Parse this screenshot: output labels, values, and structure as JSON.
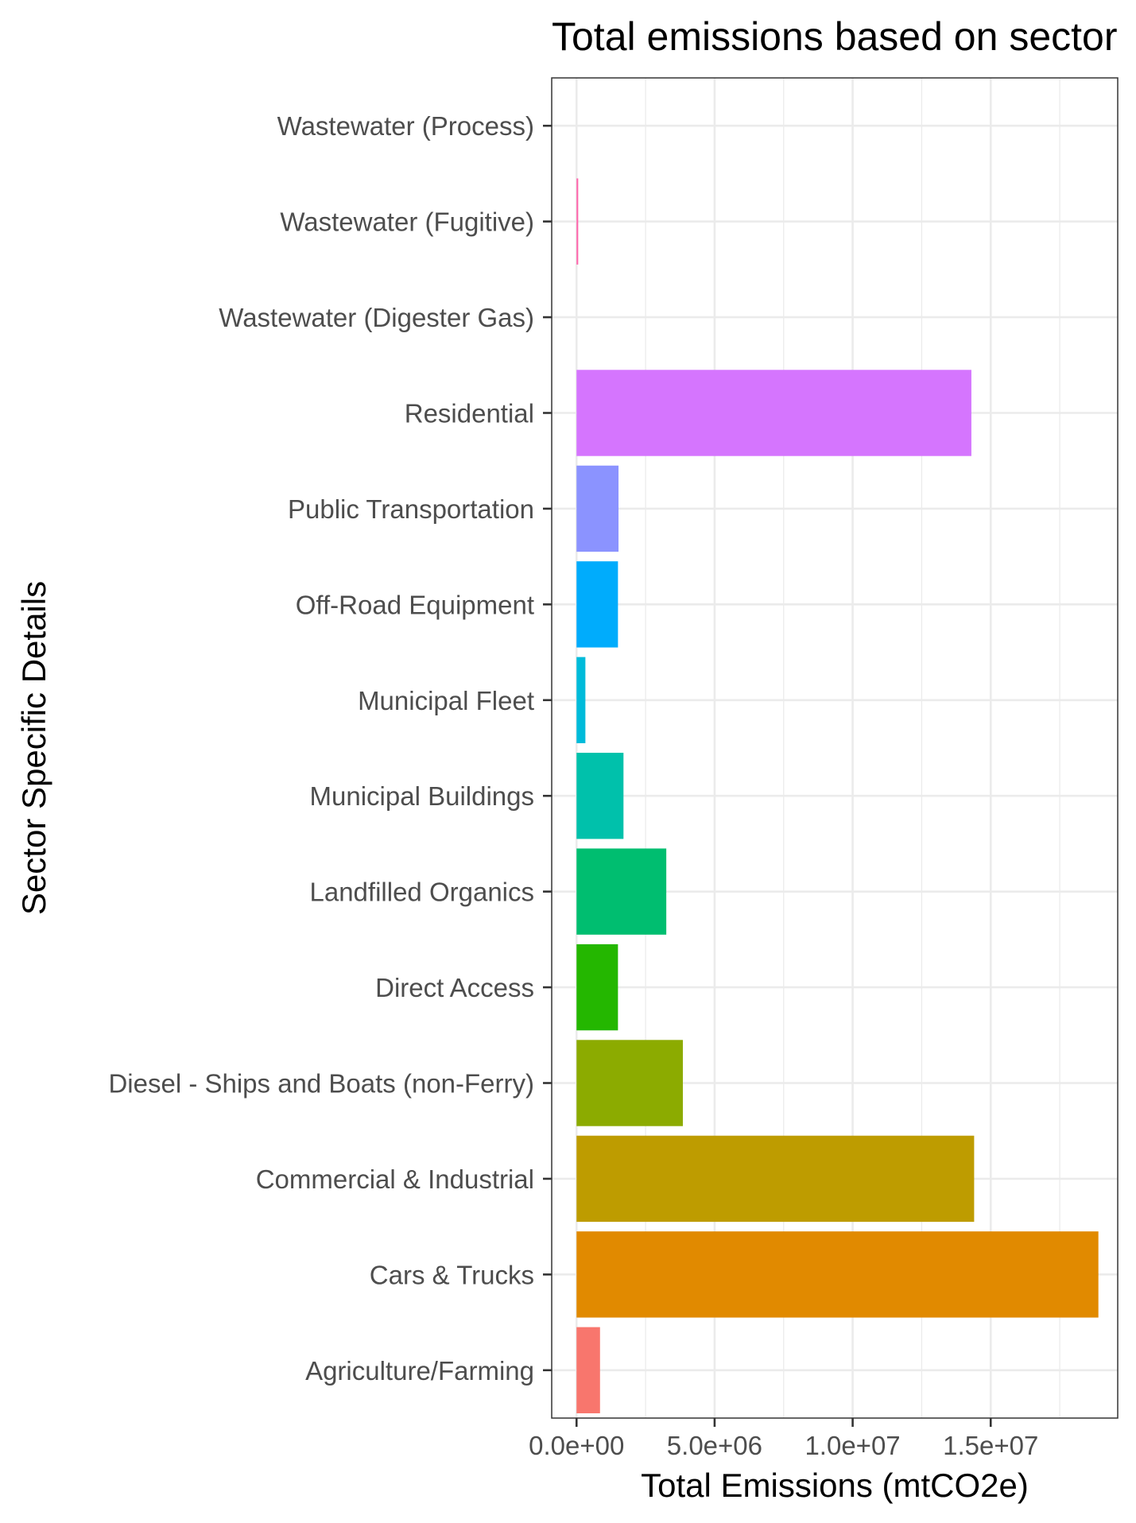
{
  "chart_data": {
    "type": "bar",
    "orientation": "horizontal",
    "title": "Total emissions based on sector",
    "xlabel": "Total Emissions (mtCO2e)",
    "ylabel": "Sector Specific Details",
    "xlim": [
      -900000,
      19600000
    ],
    "xticks": [
      0,
      5000000,
      10000000,
      15000000
    ],
    "xtick_labels": [
      "0.0e+00",
      "5.0e+06",
      "1.0e+07",
      "1.5e+07"
    ],
    "grid": true,
    "categories": [
      "Agriculture/Farming",
      "Cars & Trucks",
      "Commercial & Industrial",
      "Diesel - Ships and Boats (non-Ferry)",
      "Direct Access",
      "Landfilled Organics",
      "Municipal Buildings",
      "Municipal Fleet",
      "Off-Road Equipment",
      "Public Transportation",
      "Residential",
      "Wastewater (Digester Gas)",
      "Wastewater (Fugitive)",
      "Wastewater (Process)"
    ],
    "values": [
      850000,
      18900000,
      14400000,
      3850000,
      1500000,
      3250000,
      1700000,
      320000,
      1500000,
      1520000,
      14300000,
      0,
      60000,
      0
    ],
    "colors": [
      "#F8766D",
      "#E18A00",
      "#BE9C00",
      "#8CAB00",
      "#24B700",
      "#00BE70",
      "#00C1AB",
      "#00BBDA",
      "#00ACFC",
      "#8B93FF",
      "#D575FE",
      "#F962DD",
      "#FF65AC",
      "#FF6C91"
    ]
  }
}
